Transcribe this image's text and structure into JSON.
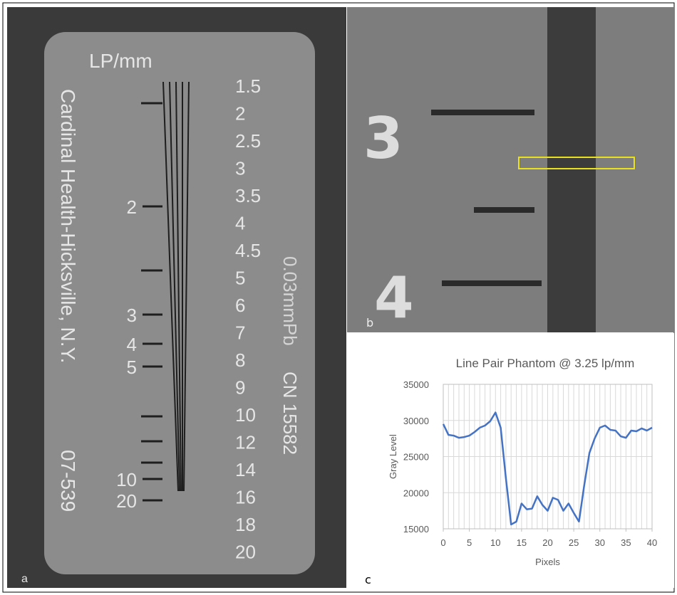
{
  "panel_a": {
    "label": "a",
    "heading": "LP/mm",
    "right_scale": [
      "1.5",
      "2",
      "2.5",
      "3",
      "3.5",
      "4",
      "4.5",
      "5",
      "6",
      "7",
      "8",
      "9",
      "10",
      "12",
      "14",
      "16",
      "18",
      "20"
    ],
    "left_scale": [
      "2",
      "3",
      "4",
      "5",
      "10",
      "20"
    ],
    "maker": "Cardinal Health-Hicksville, N.Y.",
    "part": "07-539",
    "lead": "0.03mmPb",
    "cn": "CN 15582"
  },
  "panel_b": {
    "label": "b",
    "marks": [
      "3",
      "4"
    ]
  },
  "panel_c": {
    "label": "c"
  },
  "chart_data": {
    "type": "line",
    "title": "Line Pair Phantom @ 3.25 lp/mm",
    "x_label": "Pixels",
    "y_label": "Gray Level",
    "x": [
      0,
      1,
      2,
      3,
      4,
      5,
      6,
      7,
      8,
      9,
      10,
      11,
      12,
      13,
      14,
      15,
      16,
      17,
      18,
      19,
      20,
      21,
      22,
      23,
      24,
      25,
      26,
      27,
      28,
      29,
      30,
      31,
      32,
      33,
      34,
      35,
      36,
      37,
      38,
      39,
      40
    ],
    "values": [
      29500,
      28000,
      27900,
      27600,
      27700,
      27900,
      28400,
      29000,
      29300,
      29900,
      31100,
      29000,
      22000,
      15600,
      16000,
      18500,
      17700,
      17800,
      19500,
      18300,
      17500,
      19300,
      19000,
      17500,
      18500,
      17200,
      16000,
      21000,
      25500,
      27500,
      29000,
      29300,
      28700,
      28600,
      27800,
      27600,
      28600,
      28500,
      28900,
      28600,
      29000
    ],
    "color": "#4472c4",
    "xlim": [
      0,
      40
    ],
    "xticks": [
      0,
      5,
      10,
      15,
      20,
      25,
      30,
      35,
      40
    ],
    "ylim": [
      15000,
      35000
    ],
    "yticks": [
      15000,
      20000,
      25000,
      30000,
      35000
    ],
    "grid": true
  }
}
